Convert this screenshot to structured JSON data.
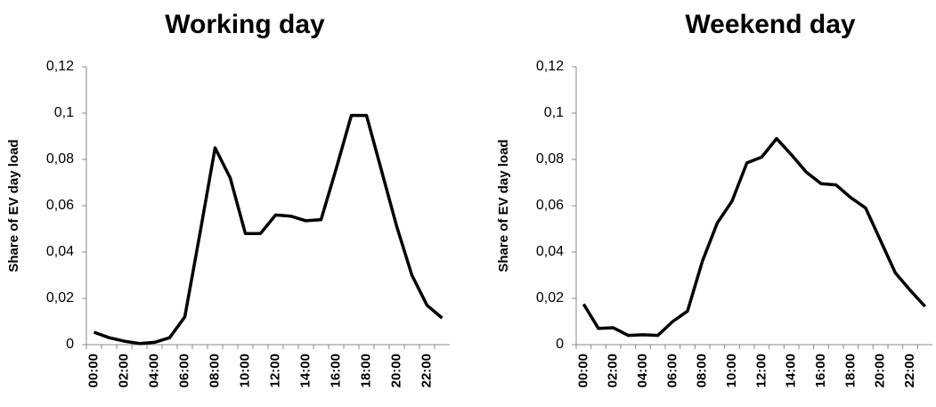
{
  "chart_data": [
    {
      "type": "line",
      "title": "Working day",
      "y_label": "Share of EV day load",
      "categories": [
        "00:00",
        null,
        "02:00",
        null,
        "04:00",
        null,
        "06:00",
        null,
        "08:00",
        null,
        "10:00",
        null,
        "12:00",
        null,
        "14:00",
        null,
        "16:00",
        null,
        "18:00",
        null,
        "20:00",
        null,
        "22:00",
        null
      ],
      "series": [
        {
          "name": "Working day",
          "color": "#000000",
          "values": [
            0.0054,
            0.003,
            0.0015,
            0.0005,
            0.001,
            0.003,
            0.012,
            0.048,
            0.085,
            0.072,
            0.048,
            0.048,
            0.056,
            0.0555,
            0.0535,
            0.054,
            0.076,
            0.099,
            0.099,
            0.075,
            0.051,
            0.03,
            0.017,
            0.0115
          ]
        }
      ],
      "ylim": [
        0,
        0.12
      ],
      "yticks": [
        0,
        {
          "value": 0.02,
          "label": "0,02"
        },
        {
          "value": 0.04,
          "label": "0,04"
        },
        {
          "value": 0.06,
          "label": "0,06"
        },
        {
          "value": 0.08,
          "label": "0,08"
        },
        {
          "value": 0.1,
          "label": "0,1"
        },
        {
          "value": 0.12,
          "label": "0,12"
        }
      ]
    },
    {
      "type": "line",
      "title": "Weekend day",
      "y_label": "Share of EV day load",
      "categories": [
        "00:00",
        null,
        "02:00",
        null,
        "04:00",
        null,
        "06:00",
        null,
        "08:00",
        null,
        "10:00",
        null,
        "12:00",
        null,
        "14:00",
        null,
        "16:00",
        null,
        "18:00",
        null,
        "20:00",
        null,
        "22:00",
        null
      ],
      "series": [
        {
          "name": "Weekend day",
          "color": "#000000",
          "values": [
            0.0175,
            0.007,
            0.0073,
            0.004,
            0.0043,
            0.004,
            0.01,
            0.0145,
            0.036,
            0.0525,
            0.062,
            0.0785,
            0.081,
            0.089,
            0.082,
            0.0745,
            0.0695,
            0.069,
            0.0635,
            0.059,
            0.045,
            0.031,
            0.0235,
            0.0165
          ]
        }
      ],
      "ylim": [
        0,
        0.12
      ],
      "yticks": [
        0,
        {
          "value": 0.02,
          "label": "0,02"
        },
        {
          "value": 0.04,
          "label": "0,04"
        },
        {
          "value": 0.06,
          "label": "0,06"
        },
        {
          "value": 0.08,
          "label": "0,08"
        },
        {
          "value": 0.1,
          "label": "0,1"
        },
        {
          "value": 0.12,
          "label": "0,12"
        }
      ]
    }
  ]
}
